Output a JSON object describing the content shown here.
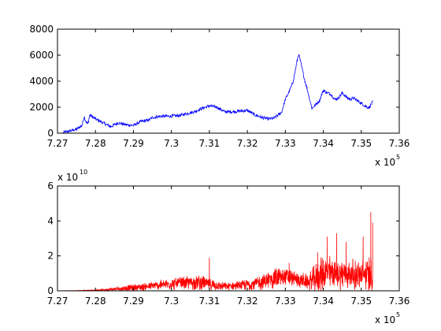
{
  "chart_data": [
    {
      "type": "line",
      "title": "",
      "xlabel": "",
      "ylabel": "",
      "xlim": [
        727000,
        736000
      ],
      "ylim": [
        0,
        8000
      ],
      "grid": false,
      "x_ticks": [
        727000,
        728000,
        729000,
        730000,
        731000,
        732000,
        733000,
        734000,
        735000,
        736000
      ],
      "x_tick_labels": [
        "7.27",
        "7.28",
        "7.29",
        "7.3",
        "7.31",
        "7.32",
        "7.33",
        "7.34",
        "7.35",
        "7.36"
      ],
      "x_exponent": {
        "base": "x 10",
        "exp": "5"
      },
      "y_ticks": [
        0,
        2000,
        4000,
        6000,
        8000
      ],
      "y_tick_labels": [
        "0",
        "2000",
        "4000",
        "6000",
        "8000"
      ],
      "series": [
        {
          "color": "#0000ff",
          "x": [
            727150,
            727300,
            727500,
            727650,
            727700,
            727750,
            727800,
            727850,
            728000,
            728200,
            728400,
            728600,
            728800,
            729000,
            729200,
            729400,
            729500,
            729700,
            729900,
            730200,
            730600,
            730800,
            731000,
            731200,
            731400,
            731600,
            731800,
            732000,
            732200,
            732400,
            732550,
            732700,
            732900,
            733000,
            733100,
            733200,
            733300,
            733350,
            733400,
            733500,
            733600,
            733700,
            733800,
            733900,
            734000,
            734100,
            734200,
            734300,
            734400,
            734500,
            734600,
            734700,
            734800,
            734900,
            735000,
            735100,
            735200,
            735300
          ],
          "y": [
            50,
            150,
            300,
            600,
            1300,
            900,
            700,
            1400,
            1100,
            800,
            500,
            800,
            650,
            600,
            900,
            1000,
            1200,
            1300,
            1300,
            1350,
            1650,
            1900,
            2100,
            2000,
            1650,
            1650,
            1700,
            1750,
            1400,
            1200,
            1100,
            1150,
            1600,
            2600,
            3200,
            3900,
            5400,
            6100,
            5500,
            4200,
            3100,
            1900,
            2200,
            2500,
            3300,
            3100,
            3000,
            2600,
            2700,
            3100,
            2800,
            2600,
            2700,
            2500,
            2300,
            2100,
            1950,
            2400
          ],
          "noise": 120
        }
      ]
    },
    {
      "type": "line",
      "title": "",
      "xlabel": "",
      "ylabel": "",
      "xlim": [
        727000,
        736000
      ],
      "ylim": [
        0,
        6
      ],
      "grid": false,
      "x_ticks": [
        727000,
        728000,
        729000,
        730000,
        731000,
        732000,
        733000,
        734000,
        735000,
        736000
      ],
      "x_tick_labels": [
        "7.27",
        "7.28",
        "7.29",
        "7.3",
        "7.31",
        "7.32",
        "7.33",
        "7.34",
        "7.35",
        "7.36"
      ],
      "x_exponent": {
        "base": "x 10",
        "exp": "5"
      },
      "y_ticks": [
        0,
        2,
        4,
        6
      ],
      "y_tick_labels": [
        "0",
        "2",
        "4",
        "6"
      ],
      "y_exponent": {
        "base": "x 10",
        "exp": "10"
      },
      "series": [
        {
          "color": "#ff0000",
          "x": [
            727150,
            727500,
            728000,
            728400,
            728800,
            729200,
            729600,
            730000,
            730400,
            730800,
            731000,
            731400,
            731800,
            732000,
            732400,
            732600,
            732800,
            733000,
            733200,
            733400,
            733600,
            733800,
            734000,
            734200,
            734400,
            734600,
            734800,
            735000,
            735200,
            735300
          ],
          "y": [
            0.005,
            0.01,
            0.03,
            0.08,
            0.15,
            0.22,
            0.3,
            0.4,
            0.45,
            0.5,
            0.35,
            0.25,
            0.3,
            0.35,
            0.5,
            0.65,
            0.75,
            0.8,
            0.7,
            0.6,
            0.5,
            0.7,
            1.0,
            1.05,
            1.0,
            0.95,
            0.9,
            0.9,
            0.95,
            1.0
          ],
          "amplitude": [
            0.005,
            0.01,
            0.04,
            0.1,
            0.2,
            0.25,
            0.3,
            0.4,
            0.45,
            0.5,
            0.4,
            0.25,
            0.3,
            0.4,
            0.5,
            0.6,
            0.75,
            0.6,
            0.55,
            0.5,
            0.5,
            1.0,
            1.2,
            1.1,
            1.1,
            1.0,
            1.0,
            1.0,
            1.2,
            1.2
          ],
          "peaks": [
            [
              731000,
              1.9
            ],
            [
              733100,
              1.6
            ],
            [
              733850,
              2.2
            ],
            [
              734100,
              3.1
            ],
            [
              734350,
              3.3
            ],
            [
              734600,
              2.8
            ],
            [
              735050,
              3.1
            ],
            [
              735250,
              4.5
            ],
            [
              735300,
              3.9
            ]
          ]
        }
      ]
    }
  ]
}
